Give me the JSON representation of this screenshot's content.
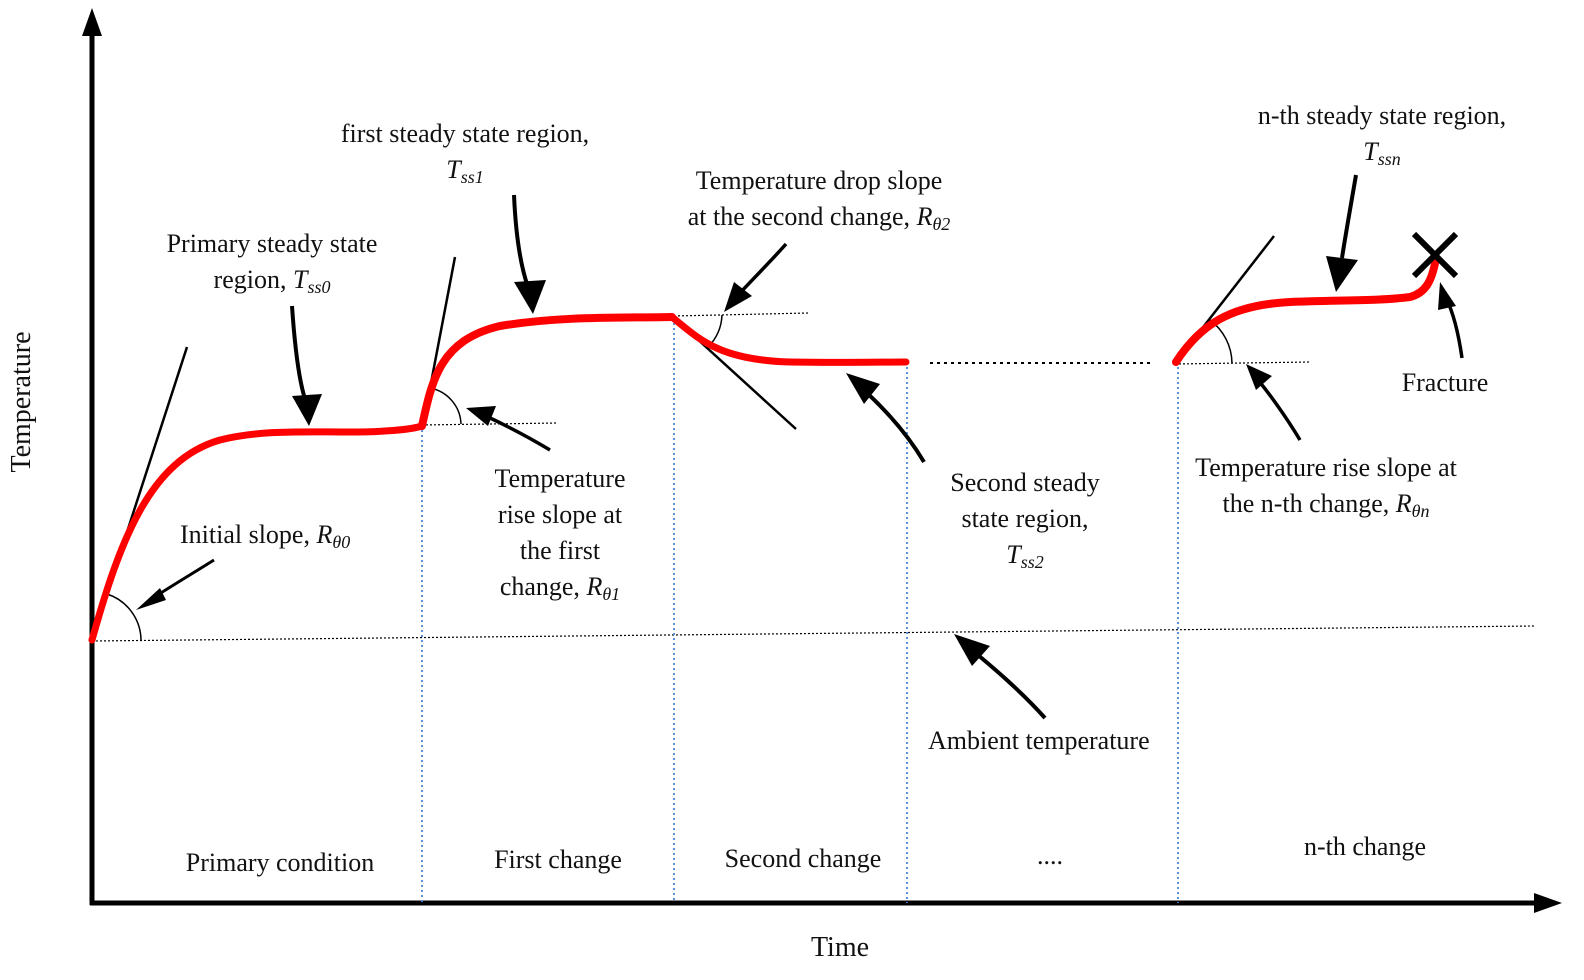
{
  "axes": {
    "x_label": "Time",
    "y_label": "Temperature"
  },
  "annotations": {
    "initial_slope": {
      "text": "Initial slope, ",
      "sym": "R",
      "sub": "θ0"
    },
    "primary_region": {
      "line1": "Primary steady state",
      "line2": "region, ",
      "sym": "T",
      "sub": "ss0"
    },
    "first_region": {
      "line1": "first steady state region,",
      "sym": "T",
      "sub": "ss1"
    },
    "rise_first": {
      "line1": "Temperature",
      "line2": "rise slope at",
      "line3": "the first",
      "line4": "change, ",
      "sym": "R",
      "sub": "θ1"
    },
    "drop_second": {
      "line1": "Temperature drop slope",
      "line2": "at the second change, ",
      "sym": "R",
      "sub": "θ2"
    },
    "second_region": {
      "line1": "Second steady",
      "line2": "state region,",
      "sym": "T",
      "sub": "ss2"
    },
    "nth_region": {
      "line1": "n-th steady state region,",
      "sym": "T",
      "sub": "ssn"
    },
    "rise_nth": {
      "line1": "Temperature rise slope at",
      "line2": "the n-th change, ",
      "sym": "R",
      "sub": "θn"
    },
    "fracture": "Fracture",
    "ambient": "Ambient temperature"
  },
  "phases": [
    "Primary condition",
    "First change",
    "Second change",
    "....",
    "n-th change"
  ],
  "colors": {
    "curve": "#ff0000",
    "divider": "#4a86d8",
    "ink": "#000000"
  }
}
